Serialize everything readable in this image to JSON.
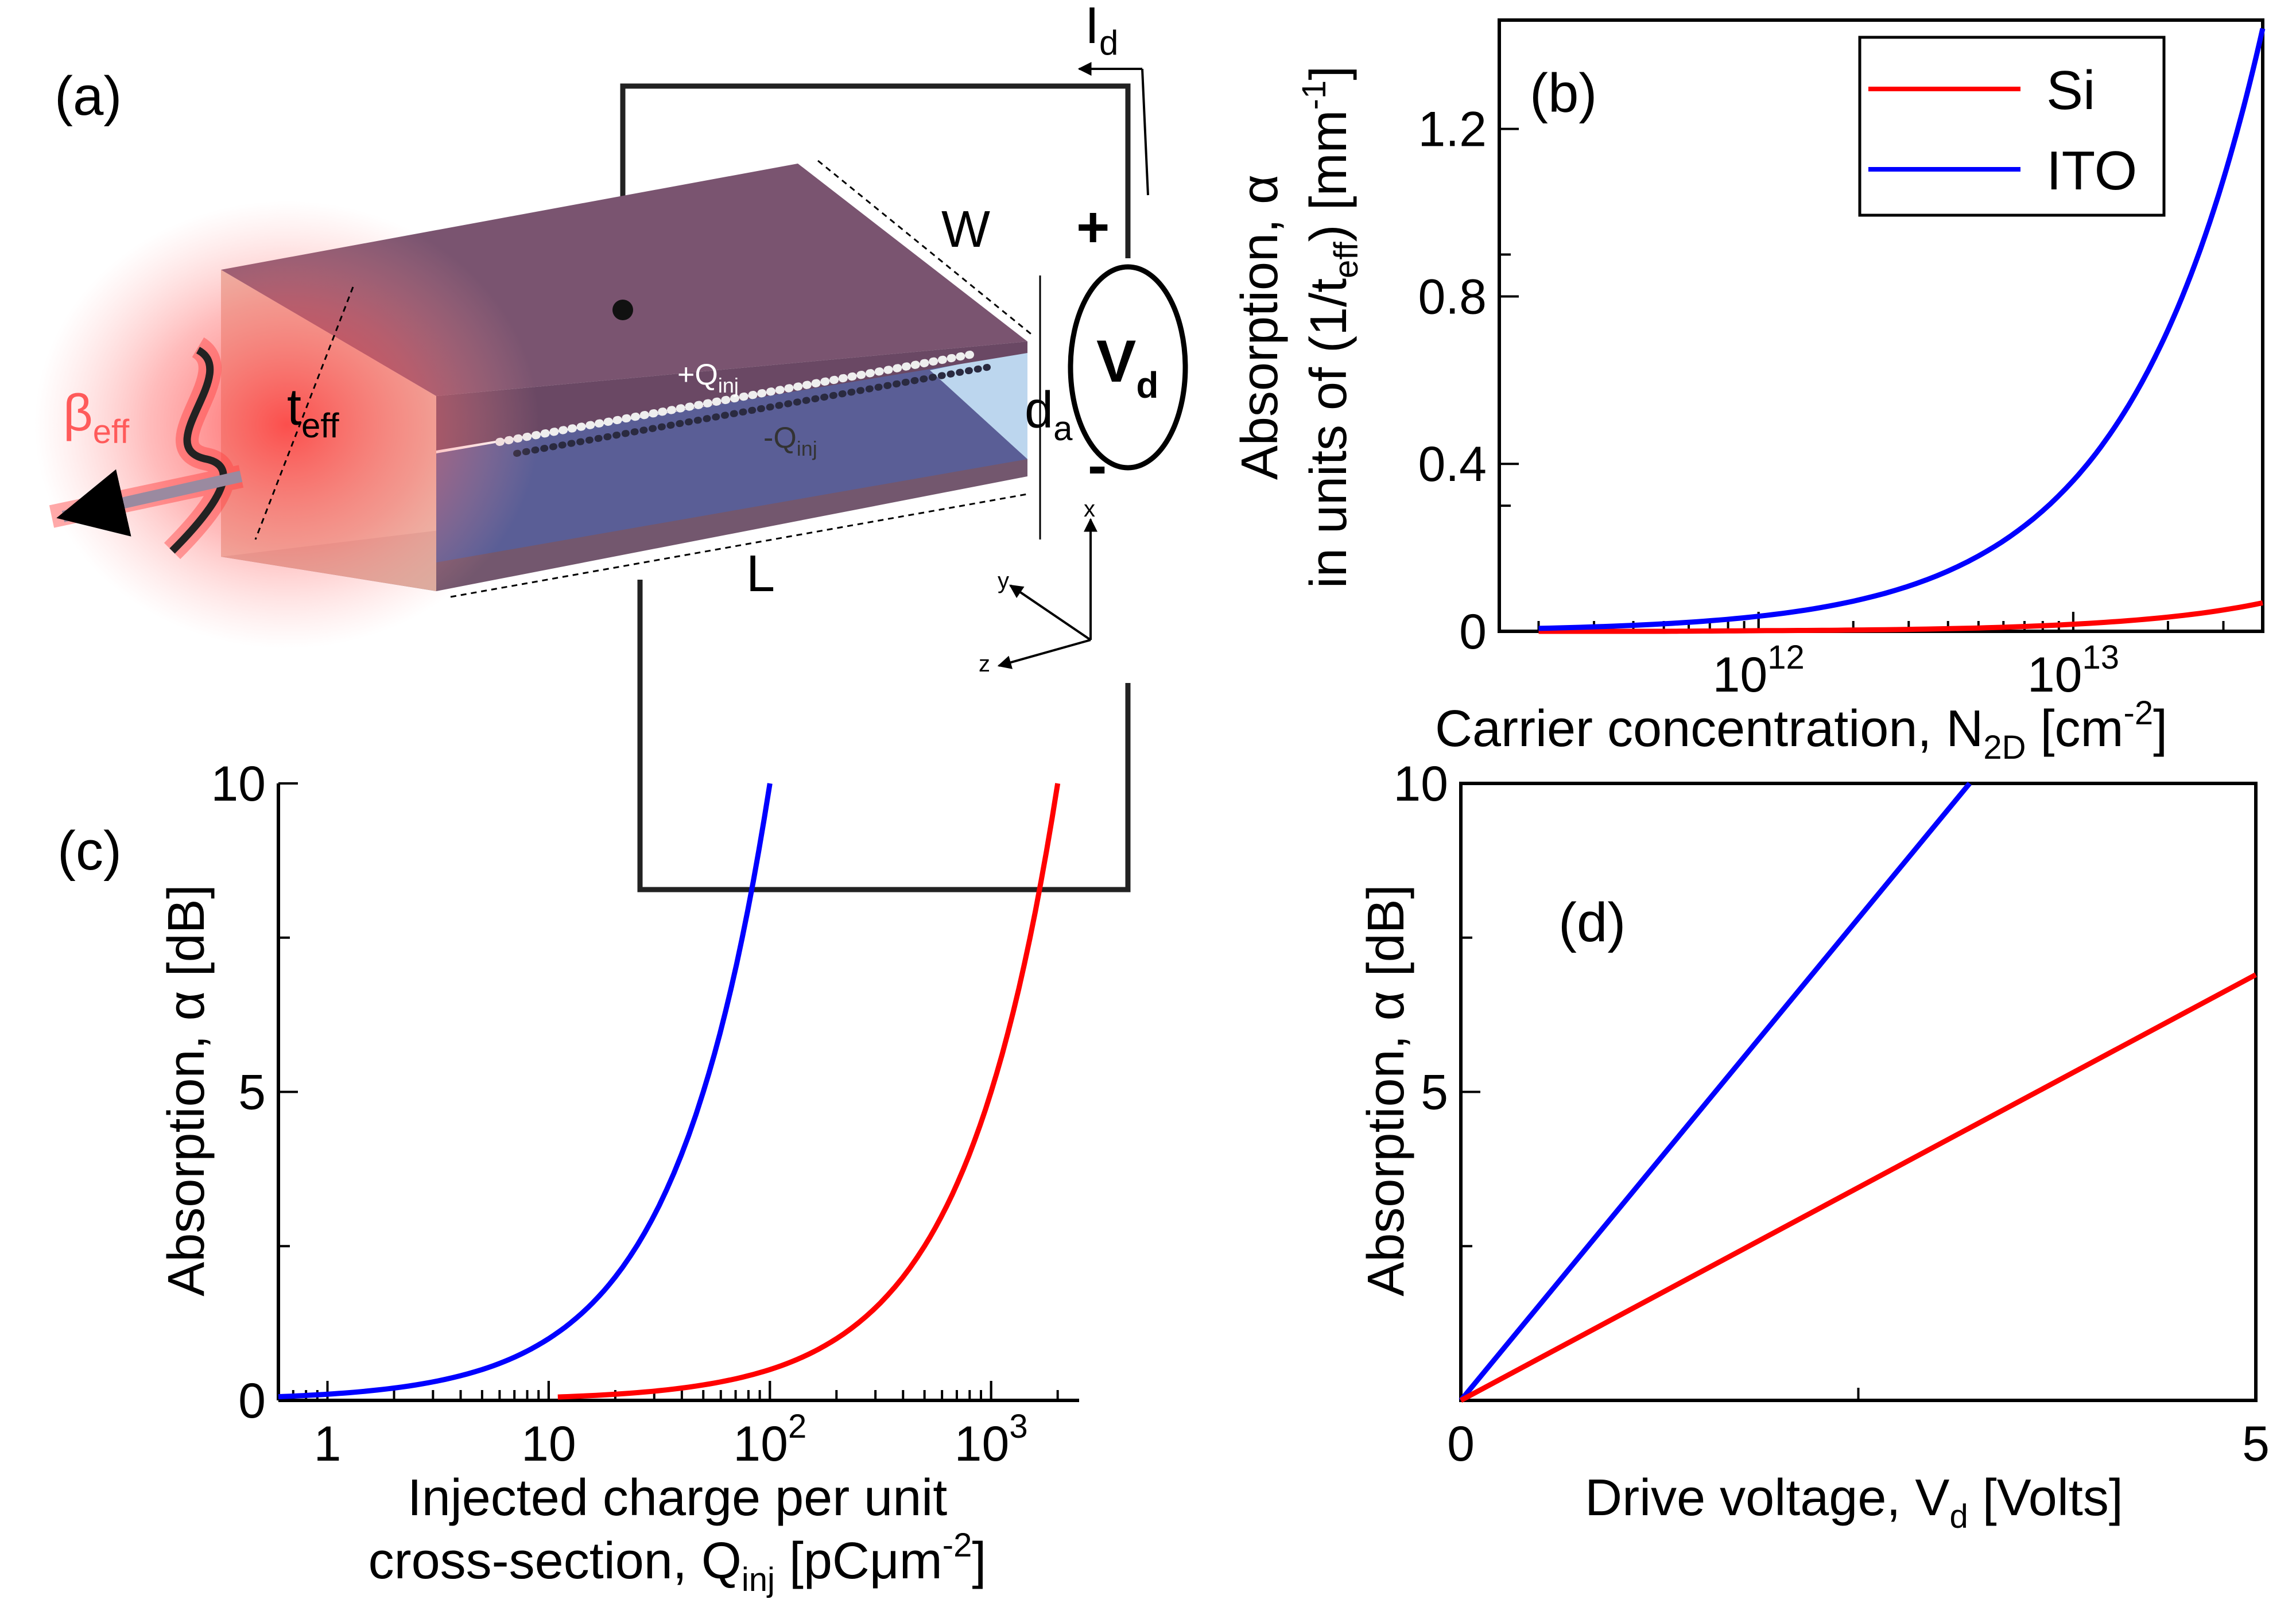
{
  "panels": {
    "a": {
      "label": "(a)",
      "current": "I",
      "current_sub": "d",
      "width": "W",
      "length": "L",
      "thickness": "t",
      "thickness_sub": "eff",
      "gap": "d",
      "gap_sub": "a",
      "beta": "β",
      "beta_sub": "eff",
      "pos_charge": "+Q",
      "pos_charge_sub": "inj",
      "neg_charge": "-Q",
      "neg_charge_sub": "inj",
      "plus": "+",
      "minus": "-",
      "source": "V",
      "source_sub": "d",
      "axis_x": "x",
      "axis_y": "y",
      "axis_z": "z",
      "layer_color": "#7a5470",
      "glow_color": "#ff3b3b"
    },
    "b": {
      "label": "(b)"
    },
    "c": {
      "label": "(c)"
    },
    "d": {
      "label": "(d)"
    }
  },
  "chart_data": [
    {
      "panel": "(b)",
      "type": "line",
      "x_scale": "log",
      "xlabel": "Carrier concentration, N",
      "xlabel_sub": "2D",
      "xlabel_end": " [cm",
      "xlabel_sup": "-2",
      "xlabel_close": "]",
      "ylabel_line1": "Absorption, α",
      "ylabel_line2": "in units of (1/t",
      "ylabel_sub": "eff",
      "ylabel_mid": ") [mm",
      "ylabel_sup": "-1",
      "ylabel_close": "]",
      "xlim": [
        150000000000.0,
        40000000000000.0
      ],
      "ylim": [
        0,
        1.46
      ],
      "xticks": [
        {
          "value": 1000000000000.0,
          "base": "10",
          "exp": "12"
        },
        {
          "value": 10000000000000.0,
          "base": "10",
          "exp": "13"
        }
      ],
      "yticks": [
        {
          "value": 0,
          "label": "0"
        },
        {
          "value": 0.4,
          "label": "0.4"
        },
        {
          "value": 0.8,
          "label": "0.8"
        },
        {
          "value": 1.2,
          "label": "1.2"
        }
      ],
      "legend": {
        "position": "top-right",
        "entries": [
          "Si",
          "ITO"
        ]
      },
      "series": [
        {
          "name": "Si",
          "color": "#ff0000",
          "x": [
            200000000000.0,
            500000000000.0,
            1000000000000.0,
            2000000000000.0,
            5000000000000.0,
            10000000000000.0,
            20000000000000.0,
            40000000000000.0
          ],
          "y": [
            0.0,
            0.0,
            0.0015,
            0.003,
            0.008,
            0.017,
            0.034,
            0.068
          ]
        },
        {
          "name": "ITO",
          "color": "#0000ff",
          "x": [
            200000000000.0,
            500000000000.0,
            1000000000000.0,
            2000000000000.0,
            5000000000000.0,
            10000000000000.0,
            15000000000000.0,
            20000000000000.0,
            30000000000000.0,
            40000000000000.0
          ],
          "y": [
            0.007,
            0.018,
            0.036,
            0.072,
            0.18,
            0.36,
            0.54,
            0.72,
            1.08,
            1.44
          ]
        }
      ]
    },
    {
      "panel": "(c)",
      "type": "line",
      "x_scale": "log",
      "xlabel_line1": "Injected charge per unit",
      "xlabel_line2": "cross-section, Q",
      "xlabel_sub": "inj",
      "xlabel_end": " [pCμm",
      "xlabel_sup": "-2",
      "xlabel_close": "]",
      "ylabel": "Absorption, α [dB]",
      "xlim": [
        0.6,
        2500
      ],
      "ylim": [
        0,
        10
      ],
      "xticks": [
        {
          "value": 1,
          "base": "1",
          "exp": ""
        },
        {
          "value": 10,
          "base": "10",
          "exp": ""
        },
        {
          "value": 100,
          "base": "10",
          "exp": "2"
        },
        {
          "value": 1000,
          "base": "10",
          "exp": "3"
        }
      ],
      "yticks": [
        {
          "value": 0,
          "label": "0"
        },
        {
          "value": 5,
          "label": "5"
        },
        {
          "value": 10,
          "label": "10"
        }
      ],
      "series": [
        {
          "name": "",
          "color": "#0000ff",
          "x": [
            0.6,
            1,
            2,
            5,
            10,
            20,
            50,
            100
          ],
          "y": [
            0.06,
            0.1,
            0.2,
            0.5,
            1.0,
            2.0,
            5.0,
            10.0
          ]
        },
        {
          "name": "",
          "color": "#ff0000",
          "x": [
            11,
            20,
            50,
            100,
            200,
            500,
            1000,
            2000
          ],
          "y": [
            0.055,
            0.1,
            0.25,
            0.5,
            1.0,
            2.5,
            5.0,
            10.0
          ]
        }
      ]
    },
    {
      "panel": "(d)",
      "type": "line",
      "xlabel": "Drive voltage, V",
      "xlabel_sub": "d",
      "xlabel_end": " [Volts]",
      "ylabel": "Absorption, α [dB]",
      "xlim": [
        0,
        5
      ],
      "ylim": [
        0,
        10
      ],
      "xticks": [
        {
          "value": 0,
          "label": "0"
        },
        {
          "value": 5,
          "label": "5"
        }
      ],
      "yticks": [
        {
          "value": 0,
          "label": ""
        },
        {
          "value": 5,
          "label": "5"
        },
        {
          "value": 10,
          "label": "10"
        }
      ],
      "series": [
        {
          "name": "",
          "color": "#0000ff",
          "x": [
            0,
            3.2
          ],
          "y": [
            0,
            10
          ]
        },
        {
          "name": "",
          "color": "#ff0000",
          "x": [
            0,
            5
          ],
          "y": [
            0,
            6.9
          ]
        }
      ]
    }
  ]
}
